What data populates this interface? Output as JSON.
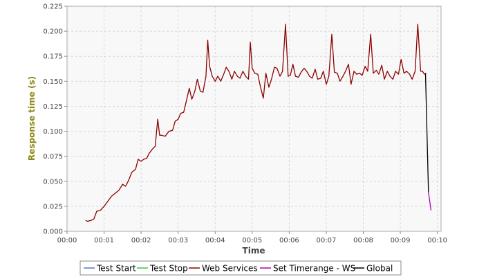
{
  "chart_data": {
    "type": "line",
    "title": "",
    "xlabel": "Time",
    "ylabel": "Response time (s)",
    "xlim": [
      0,
      10.1
    ],
    "ylim": [
      0,
      0.225
    ],
    "x_unit": "minutes",
    "xticks": [
      0,
      1,
      2,
      3,
      4,
      5,
      6,
      7,
      8,
      9,
      10
    ],
    "xtick_labels": [
      "00:00",
      "00:01",
      "00:02",
      "00:03",
      "00:04",
      "00:05",
      "00:06",
      "00:07",
      "00:08",
      "00:09",
      "00:10"
    ],
    "yticks": [
      0,
      0.025,
      0.05,
      0.075,
      0.1,
      0.125,
      0.15,
      0.175,
      0.2,
      0.225
    ],
    "ytick_labels": [
      "0.000",
      "0.025",
      "0.050",
      "0.075",
      "0.100",
      "0.125",
      "0.150",
      "0.175",
      "0.200",
      "0.225"
    ],
    "grid": true,
    "legend_position": "bottom",
    "series": [
      {
        "name": "Test Start",
        "color": "#4a7ebb",
        "x": [],
        "values": []
      },
      {
        "name": "Test Stop",
        "color": "#33cc33",
        "x": [],
        "values": []
      },
      {
        "name": "Web Services",
        "color": "#8b0000",
        "x": [
          0.5,
          0.55,
          0.65,
          0.72,
          0.8,
          0.9,
          1.0,
          1.1,
          1.2,
          1.3,
          1.4,
          1.5,
          1.58,
          1.65,
          1.75,
          1.85,
          1.92,
          2.0,
          2.07,
          2.15,
          2.22,
          2.3,
          2.38,
          2.45,
          2.5,
          2.55,
          2.65,
          2.75,
          2.85,
          2.92,
          3.0,
          3.07,
          3.15,
          3.22,
          3.3,
          3.37,
          3.45,
          3.52,
          3.6,
          3.67,
          3.75,
          3.8,
          3.85,
          3.92,
          4.0,
          4.07,
          4.15,
          4.22,
          4.3,
          4.37,
          4.45,
          4.52,
          4.6,
          4.67,
          4.75,
          4.82,
          4.9,
          4.95,
          5.0,
          5.07,
          5.15,
          5.22,
          5.3,
          5.37,
          5.45,
          5.52,
          5.6,
          5.67,
          5.75,
          5.82,
          5.9,
          5.97,
          6.03,
          6.1,
          6.17,
          6.25,
          6.32,
          6.4,
          6.47,
          6.55,
          6.62,
          6.7,
          6.77,
          6.85,
          6.92,
          7.0,
          7.07,
          7.15,
          7.22,
          7.3,
          7.37,
          7.45,
          7.52,
          7.6,
          7.67,
          7.75,
          7.82,
          7.9,
          7.97,
          8.05,
          8.12,
          8.2,
          8.27,
          8.35,
          8.42,
          8.5,
          8.57,
          8.65,
          8.72,
          8.8,
          8.87,
          8.95,
          9.02,
          9.1,
          9.17,
          9.25,
          9.32,
          9.4,
          9.47,
          9.55,
          9.6,
          9.65,
          9.7
        ],
        "values": [
          0.011,
          0.01,
          0.011,
          0.012,
          0.02,
          0.021,
          0.025,
          0.03,
          0.035,
          0.038,
          0.041,
          0.047,
          0.045,
          0.05,
          0.059,
          0.062,
          0.072,
          0.07,
          0.072,
          0.073,
          0.078,
          0.082,
          0.085,
          0.112,
          0.096,
          0.096,
          0.095,
          0.1,
          0.101,
          0.11,
          0.112,
          0.118,
          0.119,
          0.13,
          0.143,
          0.132,
          0.14,
          0.152,
          0.14,
          0.139,
          0.155,
          0.191,
          0.165,
          0.155,
          0.15,
          0.155,
          0.15,
          0.156,
          0.164,
          0.16,
          0.152,
          0.16,
          0.155,
          0.153,
          0.16,
          0.155,
          0.152,
          0.189,
          0.163,
          0.158,
          0.157,
          0.145,
          0.133,
          0.158,
          0.144,
          0.152,
          0.164,
          0.163,
          0.155,
          0.16,
          0.207,
          0.155,
          0.156,
          0.167,
          0.155,
          0.154,
          0.159,
          0.163,
          0.16,
          0.155,
          0.153,
          0.162,
          0.152,
          0.153,
          0.16,
          0.147,
          0.155,
          0.197,
          0.159,
          0.158,
          0.15,
          0.155,
          0.16,
          0.167,
          0.147,
          0.16,
          0.157,
          0.158,
          0.156,
          0.165,
          0.16,
          0.197,
          0.158,
          0.161,
          0.157,
          0.166,
          0.152,
          0.16,
          0.155,
          0.152,
          0.16,
          0.157,
          0.172,
          0.158,
          0.16,
          0.157,
          0.152,
          0.16,
          0.207,
          0.16,
          0.16,
          0.157,
          0.158
        ]
      },
      {
        "name": "Set Timerange - WS",
        "color": "#b000b0",
        "x": [
          9.76,
          9.83
        ],
        "values": [
          0.039,
          0.021
        ]
      },
      {
        "name": "Global",
        "color": "#000000",
        "x": [
          9.68,
          9.76
        ],
        "values": [
          0.158,
          0.039
        ]
      }
    ]
  }
}
